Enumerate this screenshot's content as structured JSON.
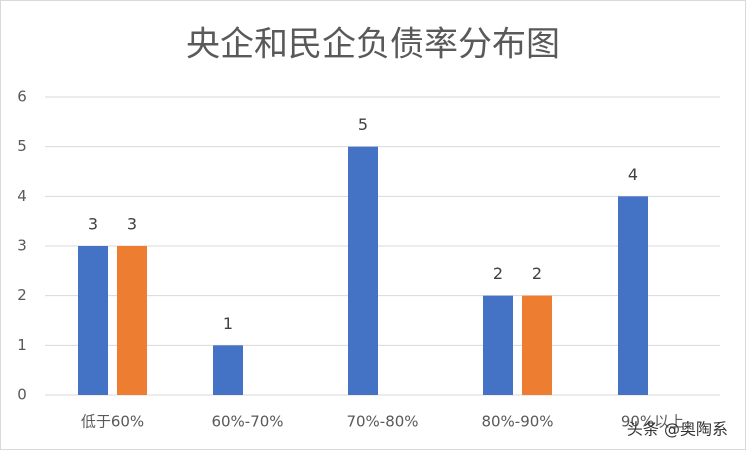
{
  "chart_data": {
    "type": "bar",
    "title": "央企和民企负债率分布图",
    "categories": [
      "低于60%",
      "60%-70%",
      "70%-80%",
      "80%-90%",
      "90%以上"
    ],
    "series": [
      {
        "color": "#4472c4",
        "values": [
          3,
          1,
          5,
          2,
          4
        ]
      },
      {
        "color": "#ed7d31",
        "values": [
          3,
          null,
          null,
          2,
          null
        ]
      }
    ],
    "ylim": [
      0,
      6
    ],
    "yticks": [
      0,
      1,
      2,
      3,
      4,
      5,
      6
    ],
    "grid": true,
    "watermark": "头条 @奥陶系"
  }
}
